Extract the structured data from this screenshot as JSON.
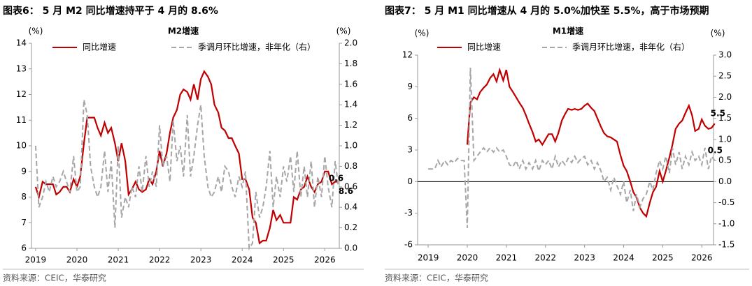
{
  "chart_data": [
    {
      "type": "line",
      "title": "图表6：  5 月 M2 同比增速持平于 4 月的 8.6%",
      "subtitle": "M2增速",
      "y_unit": "(%)",
      "y2_unit": "(%)",
      "source": "资料来源：CEIC，华泰研究",
      "xlim": [
        2018.9,
        2026.35
      ],
      "xticks": [
        2019,
        2020,
        2021,
        2022,
        2023,
        2024,
        2025,
        2026
      ],
      "ylim": [
        6,
        14
      ],
      "yticks": [
        6,
        7,
        8,
        9,
        10,
        11,
        12,
        13,
        14
      ],
      "y2lim": [
        0,
        2
      ],
      "y2ticks": [
        {
          "value": 0,
          "label": "0.0"
        },
        0.2,
        0.4,
        0.6,
        0.8,
        {
          "value": 1,
          "label": "1.0"
        },
        1.2,
        1.4,
        1.6,
        1.8,
        {
          "value": 2,
          "label": "2.0"
        }
      ],
      "zero_line": false,
      "x": [
        2019,
        2019.08,
        2019.17,
        2019.25,
        2019.33,
        2019.42,
        2019.5,
        2019.58,
        2019.67,
        2019.75,
        2019.83,
        2019.92,
        2020,
        2020.08,
        2020.17,
        2020.25,
        2020.33,
        2020.42,
        2020.5,
        2020.58,
        2020.67,
        2020.75,
        2020.83,
        2020.92,
        2021,
        2021.08,
        2021.17,
        2021.25,
        2021.33,
        2021.42,
        2021.5,
        2021.58,
        2021.67,
        2021.75,
        2021.83,
        2021.92,
        2022,
        2022.08,
        2022.17,
        2022.25,
        2022.33,
        2022.42,
        2022.5,
        2022.58,
        2022.67,
        2022.75,
        2022.83,
        2022.92,
        2023,
        2023.08,
        2023.17,
        2023.25,
        2023.33,
        2023.42,
        2023.5,
        2023.58,
        2023.67,
        2023.75,
        2023.83,
        2023.92,
        2024,
        2024.08,
        2024.17,
        2024.25,
        2024.33,
        2024.42,
        2024.5,
        2024.58,
        2024.67,
        2024.75,
        2024.83,
        2024.92,
        2025,
        2025.08,
        2025.17,
        2025.25,
        2025.33,
        2025.42,
        2025.5,
        2025.58,
        2025.67,
        2025.75,
        2025.83,
        2025.92,
        2026,
        2026.08,
        2026.17,
        2026.25,
        2026.33
      ],
      "series": [
        {
          "name": "同比增速",
          "color": "#c00000",
          "dash": false,
          "axis": "y",
          "end_label": true,
          "values": [
            8.4,
            8.0,
            8.6,
            8.5,
            8.5,
            8.5,
            8.1,
            8.2,
            8.4,
            8.4,
            8.2,
            8.7,
            8.4,
            8.8,
            10.1,
            11.1,
            11.1,
            11.1,
            10.7,
            10.4,
            10.9,
            10.5,
            10.7,
            10.1,
            9.4,
            10.1,
            9.4,
            8.1,
            8.3,
            8.6,
            8.3,
            8.2,
            8.3,
            8.7,
            8.5,
            9.0,
            9.8,
            9.2,
            9.7,
            10.5,
            11.1,
            11.4,
            12.0,
            12.2,
            12.1,
            11.8,
            12.4,
            11.8,
            12.6,
            12.9,
            12.7,
            12.4,
            11.6,
            11.3,
            10.7,
            10.6,
            10.3,
            10.3,
            10.0,
            9.7,
            8.7,
            8.7,
            8.3,
            7.2,
            7.0,
            6.2,
            6.3,
            6.3,
            6.8,
            7.5,
            7.1,
            7.3,
            7.0,
            7.0,
            7.0,
            8.0,
            7.9,
            8.3,
            8.4,
            8.8,
            8.4,
            8.2,
            8.5,
            8.6,
            9.0,
            9.0,
            8.5,
            8.6,
            8.6
          ]
        },
        {
          "name": "季调月环比增速，非年化（右）",
          "color": "#a6a6a6",
          "dash": true,
          "axis": "y2",
          "end_label": true,
          "values": [
            1.0,
            0.4,
            0.5,
            0.65,
            0.55,
            0.7,
            0.6,
            0.65,
            0.75,
            0.65,
            0.55,
            0.9,
            0.55,
            0.6,
            1.45,
            1.3,
            0.8,
            0.6,
            0.5,
            0.6,
            0.95,
            0.55,
            0.85,
            0.2,
            1.0,
            0.3,
            0.5,
            0.4,
            0.6,
            0.5,
            0.8,
            0.55,
            0.9,
            0.6,
            0.75,
            0.6,
            1.2,
            0.8,
            0.9,
            0.65,
            1.25,
            0.85,
            1.0,
            0.7,
            1.3,
            0.7,
            0.9,
            1.2,
            1.4,
            0.9,
            0.6,
            0.5,
            0.55,
            0.7,
            0.55,
            0.8,
            0.75,
            0.6,
            0.5,
            0.7,
            0.6,
            0.75,
            0.0,
            0.05,
            0.55,
            0.3,
            0.4,
            0.6,
            0.95,
            0.4,
            0.7,
            0.5,
            0.8,
            0.65,
            0.9,
            0.55,
            0.95,
            0.5,
            0.8,
            0.5,
            0.85,
            0.4,
            0.7,
            0.5,
            0.9,
            0.6,
            0.4,
            0.85,
            0.6
          ]
        }
      ]
    },
    {
      "type": "line",
      "title": "图表7：  5 月 M1 同比增速从 4 月的 5.0%加快至 5.5%，高于市场预期",
      "subtitle": "M1增速",
      "y_unit": "(%)",
      "y2_unit": "(%)",
      "source": "资料来源：CEIC，华泰研究",
      "xlim": [
        2018.73,
        2026.3
      ],
      "xticks": [
        2019,
        2020,
        2021,
        2022,
        2023,
        2024,
        2025,
        2026
      ],
      "ylim": [
        -6,
        12
      ],
      "yticks": [
        -6,
        -3,
        0,
        3,
        6,
        9,
        12
      ],
      "y2lim": [
        -1.5,
        3
      ],
      "y2ticks": [
        -1.5,
        {
          "value": -1,
          "label": "-1.0"
        },
        -0.5,
        {
          "value": 0,
          "label": "0.0"
        },
        0.5,
        {
          "value": 1,
          "label": "1.0"
        },
        1.5,
        {
          "value": 2,
          "label": "2.0"
        },
        2.5,
        {
          "value": 3,
          "label": "3.0"
        }
      ],
      "zero_line": true,
      "x": [
        2019,
        2019.08,
        2019.17,
        2019.25,
        2019.33,
        2019.42,
        2019.5,
        2019.58,
        2019.67,
        2019.75,
        2019.83,
        2019.92,
        2020,
        2020.08,
        2020.17,
        2020.25,
        2020.33,
        2020.42,
        2020.5,
        2020.58,
        2020.67,
        2020.75,
        2020.83,
        2020.92,
        2021,
        2021.08,
        2021.17,
        2021.25,
        2021.33,
        2021.42,
        2021.5,
        2021.58,
        2021.67,
        2021.75,
        2021.83,
        2021.92,
        2022,
        2022.08,
        2022.17,
        2022.25,
        2022.33,
        2022.42,
        2022.5,
        2022.58,
        2022.67,
        2022.75,
        2022.83,
        2022.92,
        2023,
        2023.08,
        2023.17,
        2023.25,
        2023.33,
        2023.42,
        2023.5,
        2023.58,
        2023.67,
        2023.75,
        2023.83,
        2023.92,
        2024,
        2024.08,
        2024.17,
        2024.25,
        2024.33,
        2024.42,
        2024.5,
        2024.58,
        2024.67,
        2024.75,
        2024.83,
        2024.92,
        2025,
        2025.08,
        2025.17,
        2025.25,
        2025.33,
        2025.42,
        2025.5,
        2025.58,
        2025.67,
        2025.75,
        2025.83,
        2025.92,
        2026,
        2026.08,
        2026.17,
        2026.25,
        2026.33
      ],
      "series": [
        {
          "name": "同比增速",
          "color": "#c00000",
          "dash": false,
          "axis": "y",
          "end_label": true,
          "values": [
            null,
            null,
            null,
            null,
            null,
            null,
            null,
            null,
            null,
            null,
            null,
            null,
            3.5,
            7.5,
            8.0,
            7.8,
            8.5,
            8.9,
            9.2,
            9.8,
            10.2,
            9.5,
            10.6,
            9.6,
            10.6,
            9.0,
            8.5,
            8.0,
            7.5,
            7.0,
            6.3,
            5.5,
            4.7,
            3.8,
            4.0,
            3.5,
            4.0,
            4.5,
            4.5,
            3.8,
            4.6,
            5.8,
            6.4,
            6.9,
            6.8,
            6.9,
            6.8,
            6.9,
            7.2,
            7.4,
            7.0,
            6.7,
            6.0,
            5.2,
            4.6,
            4.3,
            4.2,
            4.0,
            3.8,
            2.5,
            1.5,
            1.0,
            0.0,
            -1.0,
            -1.5,
            -2.5,
            -3.0,
            -3.3,
            -2.0,
            -1.0,
            -0.5,
            1.0,
            0.0,
            1.0,
            2.3,
            3.5,
            5.0,
            5.5,
            5.8,
            6.5,
            7.2,
            6.3,
            4.8,
            5.0,
            5.9,
            5.3,
            5.0,
            5.1,
            5.5
          ]
        },
        {
          "name": "季调月环比增速，非年化（右）",
          "color": "#a6a6a6",
          "dash": true,
          "axis": "y2",
          "end_label": true,
          "values": [
            0.3,
            0.3,
            0.3,
            0.5,
            0.35,
            0.5,
            0.4,
            0.5,
            0.45,
            0.55,
            0.5,
            0.5,
            -1.1,
            2.7,
            0.5,
            0.6,
            0.7,
            0.8,
            0.7,
            0.8,
            0.7,
            0.8,
            0.7,
            0.75,
            0.6,
            0.4,
            0.35,
            0.5,
            0.3,
            0.5,
            0.3,
            0.45,
            0.3,
            0.5,
            0.25,
            0.5,
            0.4,
            0.5,
            0.3,
            0.6,
            0.35,
            0.5,
            0.4,
            0.55,
            0.45,
            0.6,
            0.45,
            0.55,
            0.6,
            0.4,
            0.5,
            0.3,
            0.45,
            0.25,
            0.0,
            0.1,
            -0.2,
            0.1,
            -0.1,
            -0.3,
            0.0,
            -0.5,
            -0.2,
            -0.7,
            -0.3,
            -0.6,
            -0.4,
            -0.3,
            0.0,
            -0.2,
            0.2,
            0.5,
            0.3,
            0.6,
            0.2,
            0.8,
            0.4,
            0.7,
            0.3,
            0.6,
            0.4,
            0.7,
            0.5,
            0.6,
            0.4,
            0.8,
            0.3,
            0.6,
            0.5
          ]
        }
      ]
    }
  ]
}
